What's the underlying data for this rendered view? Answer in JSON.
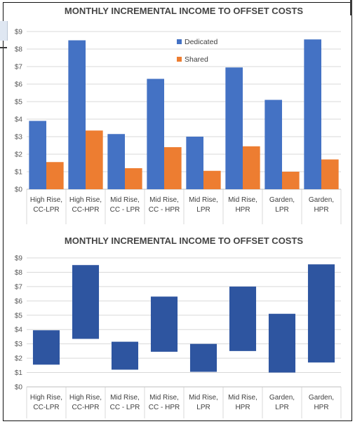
{
  "chart_data": [
    {
      "type": "bar",
      "title": "MONTHLY INCREMENTAL INCOME TO OFFSET COSTS",
      "categories": [
        "High Rise, CC-LPR",
        "High Rise, CC-HPR",
        "Mid Rise, CC - LPR",
        "Mid Rise, CC - HPR",
        "Mid Rise, LPR",
        "Mid Rise, HPR",
        "Garden, LPR",
        "Garden, HPR"
      ],
      "category_lines": [
        [
          "High Rise,",
          "CC-LPR"
        ],
        [
          "High Rise,",
          "CC-HPR"
        ],
        [
          "Mid Rise,",
          "CC - LPR"
        ],
        [
          "Mid Rise,",
          "CC - HPR"
        ],
        [
          "Mid Rise,",
          "LPR"
        ],
        [
          "Mid Rise,",
          "HPR"
        ],
        [
          "Garden,",
          "LPR"
        ],
        [
          "Garden,",
          "HPR"
        ]
      ],
      "series": [
        {
          "name": "Dedicated",
          "color": "#4472C4",
          "values": [
            3.9,
            8.5,
            3.15,
            6.3,
            3.0,
            6.95,
            5.1,
            8.55
          ]
        },
        {
          "name": "Shared",
          "color": "#ED7D31",
          "values": [
            1.55,
            3.35,
            1.2,
            2.4,
            1.05,
            2.45,
            1.0,
            1.7
          ]
        }
      ],
      "ylim": [
        0,
        9
      ],
      "yticks": [
        "$0",
        "$1",
        "$2",
        "$3",
        "$4",
        "$5",
        "$6",
        "$7",
        "$8",
        "$9"
      ],
      "grid": true,
      "legend_position": "top-center"
    },
    {
      "type": "bar",
      "subtype": "floating-range",
      "title": "MONTHLY INCREMENTAL INCOME TO OFFSET COSTS",
      "categories": [
        "High Rise, CC-LPR",
        "High Rise, CC-HPR",
        "Mid Rise, CC - LPR",
        "Mid Rise, CC - HPR",
        "Mid Rise, LPR",
        "Mid Rise, HPR",
        "Garden, LPR",
        "Garden, HPR"
      ],
      "category_lines": [
        [
          "High Rise,",
          "CC-LPR"
        ],
        [
          "High Rise,",
          "CC-HPR"
        ],
        [
          "Mid Rise,",
          "CC - LPR"
        ],
        [
          "Mid Rise,",
          "CC - HPR"
        ],
        [
          "Mid Rise,",
          "LPR"
        ],
        [
          "Mid Rise,",
          "HPR"
        ],
        [
          "Garden,",
          "LPR"
        ],
        [
          "Garden,",
          "HPR"
        ]
      ],
      "low": [
        1.55,
        3.35,
        1.2,
        2.45,
        1.05,
        2.5,
        1.0,
        1.7
      ],
      "high": [
        3.95,
        8.5,
        3.15,
        6.3,
        3.0,
        7.0,
        5.1,
        8.55
      ],
      "color": "#2E55A0",
      "ylim": [
        0,
        9
      ],
      "yticks": [
        "$0",
        "$1",
        "$2",
        "$3",
        "$4",
        "$5",
        "$6",
        "$7",
        "$8",
        "$9"
      ],
      "grid": true
    }
  ]
}
